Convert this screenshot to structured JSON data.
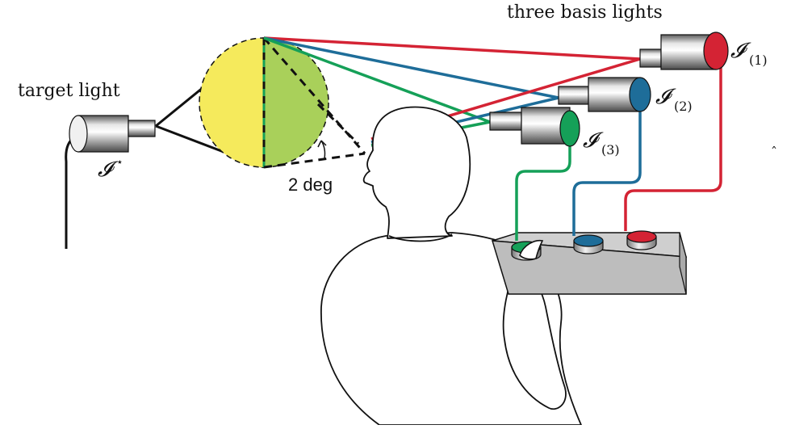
{
  "labels": {
    "top_title": "three basis lights",
    "target_light": "target light",
    "target_symbol": "𝓘",
    "target_sup": "⋆",
    "angle": "2 deg",
    "basis_symbol": "𝓘",
    "basis": [
      {
        "sub": "(1)"
      },
      {
        "sub": "(2)"
      },
      {
        "sub": "(3)"
      }
    ],
    "stray_mark": "ˆ"
  },
  "colors": {
    "red": "#d42334",
    "blue": "#1e6d99",
    "green": "#15a058",
    "yellow": "#f5ea5c",
    "lightgreen": "#a9d05a",
    "line": "#111111"
  },
  "icons": {
    "target_lamp": "lamp-icon",
    "basis_lamp": "lamp-icon",
    "observer": "person-silhouette",
    "control_box": "control-box-icon",
    "knob": "knob-icon"
  }
}
